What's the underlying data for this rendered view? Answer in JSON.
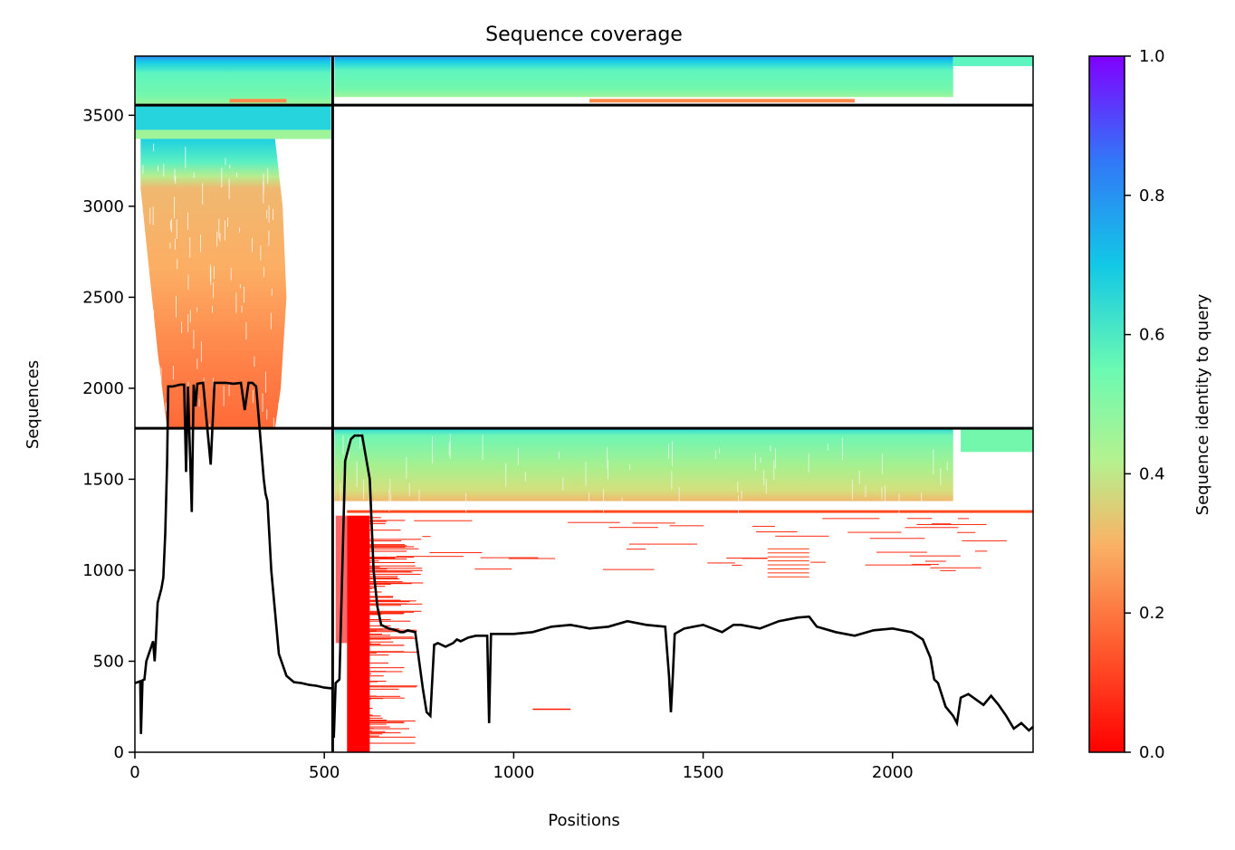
{
  "chart_data": {
    "type": "heatmap",
    "title": "Sequence coverage",
    "xlabel": "Positions",
    "ylabel": "Sequences",
    "xlim": [
      0,
      2371
    ],
    "ylim": [
      0,
      3825
    ],
    "x_ticks": [
      0,
      500,
      1000,
      1500,
      2000
    ],
    "y_ticks": [
      0,
      500,
      1000,
      1500,
      2000,
      2500,
      3000,
      3500
    ],
    "colorbar": {
      "label": "Sequence identity to query",
      "colormap": "rainbow_r",
      "range": [
        0,
        1
      ],
      "ticks": [
        "0.0",
        "0.2",
        "0.4",
        "0.6",
        "0.8",
        "1.0"
      ]
    },
    "chain_boundaries": {
      "x": [
        522
      ],
      "y": [
        1780,
        3556
      ]
    },
    "blocks": [
      {
        "region": "chain A × chain A",
        "x": [
          0,
          522
        ],
        "y": [
          3556,
          3825
        ],
        "identity": [
          0.45,
          0.8
        ]
      },
      {
        "region": "chain A × chain B",
        "x": [
          522,
          2371
        ],
        "y": [
          3556,
          3825
        ],
        "identity": [
          0.45,
          0.8
        ]
      },
      {
        "region": "chain A only",
        "x": [
          0,
          522
        ],
        "y": [
          1780,
          3556
        ],
        "identity": [
          0.12,
          0.7
        ]
      },
      {
        "region": "chain B only",
        "x": [
          522,
          2371
        ],
        "y": [
          0,
          1780
        ],
        "identity": [
          0.0,
          0.7
        ]
      }
    ],
    "coverage_line": {
      "color": "#000000",
      "x": [
        0,
        14,
        16,
        20,
        25,
        30,
        40,
        48,
        52,
        55,
        60,
        70,
        75,
        80,
        85,
        88,
        100,
        120,
        130,
        135,
        140,
        150,
        155,
        160,
        165,
        180,
        200,
        210,
        220,
        240,
        260,
        280,
        290,
        300,
        310,
        320,
        340,
        345,
        350,
        360,
        380,
        400,
        420,
        440,
        460,
        480,
        500,
        522,
        525,
        530,
        540,
        555,
        570,
        580,
        600,
        620,
        630,
        640,
        650,
        660,
        670,
        690,
        700,
        710,
        720,
        740,
        760,
        770,
        780,
        790,
        800,
        820,
        840,
        850,
        860,
        880,
        900,
        930,
        935,
        940,
        960,
        1000,
        1050,
        1100,
        1150,
        1200,
        1250,
        1300,
        1350,
        1400,
        1410,
        1415,
        1420,
        1425,
        1450,
        1500,
        1550,
        1580,
        1600,
        1650,
        1700,
        1750,
        1780,
        1800,
        1850,
        1900,
        1950,
        2000,
        2050,
        2080,
        2100,
        2110,
        2120,
        2140,
        2160,
        2170,
        2180,
        2200,
        2240,
        2260,
        2280,
        2300,
        2320,
        2340,
        2360,
        2371
      ],
      "y": [
        380,
        390,
        100,
        395,
        400,
        500,
        560,
        610,
        500,
        600,
        820,
        900,
        960,
        1200,
        1600,
        2010,
        2010,
        2020,
        2020,
        1540,
        2010,
        1320,
        2020,
        1900,
        2025,
        2030,
        1580,
        2030,
        2030,
        2030,
        2025,
        2030,
        1880,
        2030,
        2030,
        2010,
        1500,
        1420,
        1380,
        1000,
        540,
        420,
        385,
        380,
        370,
        365,
        355,
        350,
        80,
        380,
        400,
        1600,
        1720,
        1740,
        1740,
        1500,
        1000,
        800,
        700,
        690,
        680,
        670,
        660,
        660,
        670,
        660,
        350,
        220,
        200,
        590,
        600,
        580,
        600,
        620,
        610,
        630,
        640,
        640,
        160,
        650,
        650,
        650,
        660,
        690,
        700,
        680,
        690,
        720,
        700,
        690,
        420,
        220,
        420,
        650,
        680,
        700,
        660,
        700,
        700,
        680,
        720,
        740,
        745,
        690,
        660,
        640,
        670,
        680,
        660,
        620,
        520,
        400,
        380,
        250,
        200,
        160,
        300,
        320,
        260,
        310,
        260,
        200,
        130,
        160,
        120,
        140
      ]
    }
  }
}
